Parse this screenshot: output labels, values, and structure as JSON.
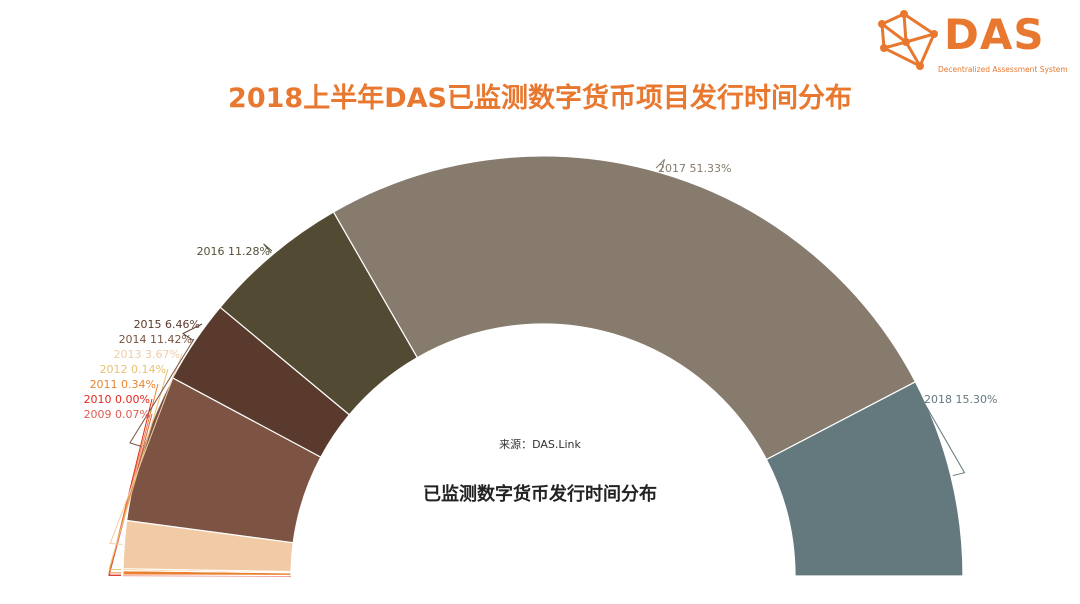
{
  "logo": {
    "text": "DAS",
    "subtitle": "Decentralized Assessment System"
  },
  "title": "2018上半年DAS已监测数字货币项目发行时间分布",
  "source": "来源：DAS.Link",
  "center_title": "已监测数字货币发行时间分布",
  "colors": {
    "accent": "#e8782f"
  },
  "chart_data": {
    "type": "pie",
    "subtype": "half-donut",
    "title": "2018上半年DAS已监测数字货币项目发行时间分布",
    "slices": [
      {
        "label": "2009",
        "value": 0.07,
        "display": "2009 0.07%",
        "color": "#e8502f",
        "label_color": "#e05c52"
      },
      {
        "label": "2010",
        "value": 0.0,
        "display": "2010 0.00%",
        "color": "#e23b2f",
        "label_color": "#e02a20"
      },
      {
        "label": "2011",
        "value": 0.34,
        "display": "2011 0.34%",
        "color": "#e8802f",
        "label_color": "#e8862f"
      },
      {
        "label": "2012",
        "value": 0.14,
        "display": "2012 0.14%",
        "color": "#f2b96a",
        "label_color": "#e9c16f"
      },
      {
        "label": "2013",
        "value": 3.67,
        "display": "2013 3.67%",
        "color": "#f0cba5",
        "label_color": "#efcda8"
      },
      {
        "label": "2014",
        "value": 11.42,
        "display": "2014 11.42%",
        "color": "#7d5444",
        "label_color": "#7a5444"
      },
      {
        "label": "2015",
        "value": 6.46,
        "display": "2015 6.46%",
        "color": "#5a3a2c",
        "label_color": "#5a3a2c"
      },
      {
        "label": "2016",
        "value": 11.28,
        "display": "2016 11.28%",
        "color": "#534a33",
        "label_color": "#555038"
      },
      {
        "label": "2017",
        "value": 51.33,
        "display": "2017 51.33%",
        "color": "#867b6c",
        "label_color": "#867c6e"
      },
      {
        "label": "2018",
        "value": 15.3,
        "display": "2018 15.30%",
        "color": "#63797e",
        "label_color": "#63797e"
      }
    ]
  }
}
